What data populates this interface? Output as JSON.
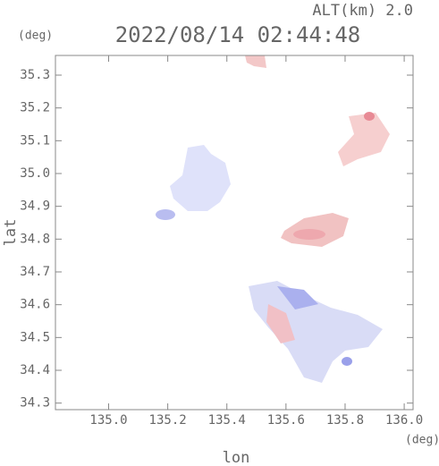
{
  "chart_data": {
    "type": "scatter",
    "title": "2022/08/14 02:44:48",
    "subtitle": "ALT(km) 2.0",
    "x_label": "lon",
    "y_label": "lat",
    "x_unit": "(deg)",
    "y_unit": "(deg)",
    "xlim": [
      134.82,
      136.03
    ],
    "ylim": [
      34.28,
      35.36
    ],
    "xticks": [
      {
        "value": 135,
        "label": "135.0"
      },
      135.2,
      135.4,
      135.6,
      135.8,
      {
        "value": 136,
        "label": "136.0"
      }
    ],
    "yticks": [
      34.3,
      34.4,
      34.5,
      34.6,
      34.7,
      34.8,
      34.9,
      {
        "value": 35,
        "label": "35.0"
      },
      35.1,
      35.2,
      35.3
    ]
  }
}
